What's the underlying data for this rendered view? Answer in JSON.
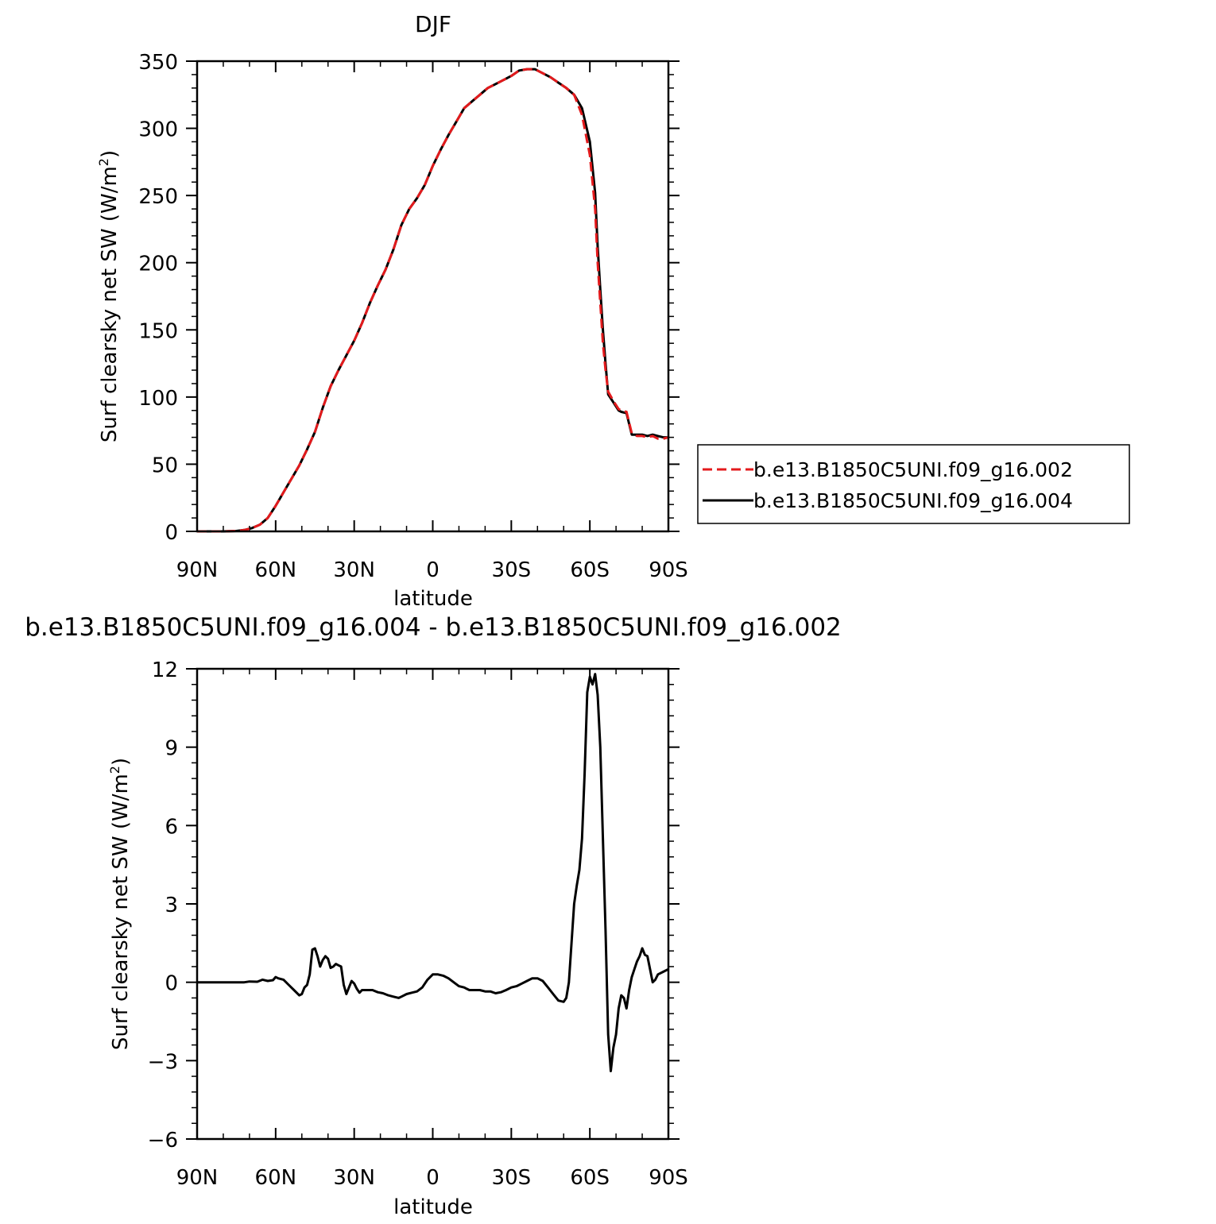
{
  "chart_data": [
    {
      "type": "line",
      "title": "DJF",
      "xlabel": "latitude",
      "ylabel_main": "Surf clearsky net SW (W/m",
      "ylabel_sup": "2",
      "ylabel_close": ")",
      "xlim": [
        -90,
        90
      ],
      "ylim": [
        0,
        350
      ],
      "x_ticks": [
        -90,
        -60,
        -30,
        0,
        30,
        60,
        90
      ],
      "x_tick_labels": [
        "90N",
        "60N",
        "30N",
        "0",
        "30S",
        "60S",
        "90S"
      ],
      "y_ticks": [
        0,
        50,
        100,
        150,
        200,
        250,
        300,
        350
      ],
      "y_tick_labels": [
        "0",
        "50",
        "100",
        "150",
        "200",
        "250",
        "300",
        "350"
      ],
      "legend_position": "right",
      "series": [
        {
          "name": "b.e13.B1850C5UNI.f09_g16.002",
          "color": "#e31a1c",
          "dash": "dashed",
          "points": [
            [
              -90,
              0
            ],
            [
              -85,
              0
            ],
            [
              -80,
              0
            ],
            [
              -75,
              0.3
            ],
            [
              -72,
              1
            ],
            [
              -69,
              2.5
            ],
            [
              -66,
              5
            ],
            [
              -63,
              10
            ],
            [
              -60,
              19
            ],
            [
              -57,
              29
            ],
            [
              -54,
              39
            ],
            [
              -51,
              49
            ],
            [
              -48,
              61
            ],
            [
              -45,
              74
            ],
            [
              -42,
              92
            ],
            [
              -39,
              108
            ],
            [
              -36,
              120
            ],
            [
              -33,
              131
            ],
            [
              -30,
              142
            ],
            [
              -27,
              155
            ],
            [
              -24,
              170
            ],
            [
              -21,
              183
            ],
            [
              -18,
              195
            ],
            [
              -15,
              210
            ],
            [
              -12,
              228
            ],
            [
              -9,
              240
            ],
            [
              -6,
              248
            ],
            [
              -3,
              258
            ],
            [
              0,
              272
            ],
            [
              3,
              284
            ],
            [
              6,
              295
            ],
            [
              9,
              305
            ],
            [
              12,
              315
            ],
            [
              15,
              320
            ],
            [
              18,
              325
            ],
            [
              21,
              330
            ],
            [
              24,
              333
            ],
            [
              27,
              336
            ],
            [
              30,
              339
            ],
            [
              33,
              343
            ],
            [
              36,
              344
            ],
            [
              39,
              344
            ],
            [
              42,
              341
            ],
            [
              45,
              338
            ],
            [
              48,
              334
            ],
            [
              51,
              330
            ],
            [
              54,
              325
            ],
            [
              57,
              310
            ],
            [
              60,
              280
            ],
            [
              62,
              240
            ],
            [
              63,
              200
            ],
            [
              64,
              170
            ],
            [
              65,
              140
            ],
            [
              66,
              120
            ],
            [
              67,
              104
            ],
            [
              69,
              97
            ],
            [
              71,
              91
            ],
            [
              72,
              90
            ],
            [
              74,
              89
            ],
            [
              76,
              73
            ],
            [
              78,
              71
            ],
            [
              80,
              71
            ],
            [
              82,
              70
            ],
            [
              84,
              71
            ],
            [
              86,
              69
            ],
            [
              88,
              69
            ],
            [
              90,
              70
            ]
          ]
        },
        {
          "name": "b.e13.B1850C5UNI.f09_g16.004",
          "color": "#000000",
          "dash": "solid",
          "points": [
            [
              -90,
              0
            ],
            [
              -85,
              0
            ],
            [
              -80,
              0
            ],
            [
              -75,
              0.3
            ],
            [
              -72,
              1
            ],
            [
              -69,
              2.5
            ],
            [
              -66,
              5
            ],
            [
              -63,
              10
            ],
            [
              -60,
              19
            ],
            [
              -57,
              29
            ],
            [
              -54,
              39
            ],
            [
              -51,
              49
            ],
            [
              -48,
              61
            ],
            [
              -45,
              74
            ],
            [
              -42,
              92
            ],
            [
              -39,
              108
            ],
            [
              -36,
              120
            ],
            [
              -33,
              131
            ],
            [
              -30,
              142
            ],
            [
              -27,
              155
            ],
            [
              -24,
              170
            ],
            [
              -21,
              183
            ],
            [
              -18,
              195
            ],
            [
              -15,
              210
            ],
            [
              -12,
              228
            ],
            [
              -9,
              240
            ],
            [
              -6,
              248
            ],
            [
              -3,
              258
            ],
            [
              0,
              272
            ],
            [
              3,
              284
            ],
            [
              6,
              295
            ],
            [
              9,
              305
            ],
            [
              12,
              315
            ],
            [
              15,
              320
            ],
            [
              18,
              325
            ],
            [
              21,
              330
            ],
            [
              24,
              333
            ],
            [
              27,
              336
            ],
            [
              30,
              339
            ],
            [
              33,
              343
            ],
            [
              36,
              344
            ],
            [
              39,
              344
            ],
            [
              42,
              341
            ],
            [
              45,
              338
            ],
            [
              48,
              334
            ],
            [
              51,
              330
            ],
            [
              54,
              325
            ],
            [
              57,
              315
            ],
            [
              60,
              290
            ],
            [
              62,
              252
            ],
            [
              63,
              212
            ],
            [
              64,
              180
            ],
            [
              65,
              150
            ],
            [
              66,
              125
            ],
            [
              67,
              102
            ],
            [
              69,
              96
            ],
            [
              71,
              90
            ],
            [
              72,
              89
            ],
            [
              74,
              88
            ],
            [
              76,
              72
            ],
            [
              78,
              72
            ],
            [
              80,
              72
            ],
            [
              82,
              71
            ],
            [
              84,
              72
            ],
            [
              86,
              71
            ],
            [
              88,
              70
            ],
            [
              90,
              70
            ]
          ]
        }
      ]
    },
    {
      "type": "line",
      "title": "b.e13.B1850C5UNI.f09_g16.004 - b.e13.B1850C5UNI.f09_g16.002",
      "xlabel": "latitude",
      "ylabel_main": "Surf clearsky net SW (W/m",
      "ylabel_sup": "2",
      "ylabel_close": ")",
      "xlim": [
        -90,
        90
      ],
      "ylim": [
        -6,
        12
      ],
      "x_ticks": [
        -90,
        -60,
        -30,
        0,
        30,
        60,
        90
      ],
      "x_tick_labels": [
        "90N",
        "60N",
        "30N",
        "0",
        "30S",
        "60S",
        "90S"
      ],
      "y_ticks": [
        -6,
        -3,
        0,
        3,
        6,
        9,
        12
      ],
      "y_tick_labels": [
        "−6",
        "−3",
        "0",
        "3",
        "6",
        "9",
        "12"
      ],
      "series": [
        {
          "color": "#000000",
          "dash": "solid",
          "points": [
            [
              -90,
              0
            ],
            [
              -80,
              0
            ],
            [
              -72,
              0
            ],
            [
              -70,
              0.03
            ],
            [
              -67,
              0.02
            ],
            [
              -65,
              0.1
            ],
            [
              -63,
              0.05
            ],
            [
              -61,
              0.08
            ],
            [
              -60,
              0.2
            ],
            [
              -59,
              0.15
            ],
            [
              -57,
              0.1
            ],
            [
              -55,
              -0.1
            ],
            [
              -53,
              -0.3
            ],
            [
              -51,
              -0.5
            ],
            [
              -50,
              -0.45
            ],
            [
              -49,
              -0.2
            ],
            [
              -48,
              -0.1
            ],
            [
              -47,
              0.3
            ],
            [
              -46,
              1.25
            ],
            [
              -45,
              1.3
            ],
            [
              -44,
              1.0
            ],
            [
              -43,
              0.6
            ],
            [
              -42,
              0.85
            ],
            [
              -41,
              1.0
            ],
            [
              -40,
              0.9
            ],
            [
              -39,
              0.55
            ],
            [
              -38,
              0.6
            ],
            [
              -37,
              0.7
            ],
            [
              -36,
              0.65
            ],
            [
              -35,
              0.6
            ],
            [
              -34,
              -0.1
            ],
            [
              -33,
              -0.45
            ],
            [
              -32,
              -0.2
            ],
            [
              -31,
              0.05
            ],
            [
              -30,
              -0.05
            ],
            [
              -29,
              -0.25
            ],
            [
              -28,
              -0.4
            ],
            [
              -27,
              -0.3
            ],
            [
              -25,
              -0.3
            ],
            [
              -23,
              -0.3
            ],
            [
              -21,
              -0.38
            ],
            [
              -19,
              -0.42
            ],
            [
              -17,
              -0.5
            ],
            [
              -15,
              -0.55
            ],
            [
              -13,
              -0.6
            ],
            [
              -12,
              -0.55
            ],
            [
              -10,
              -0.45
            ],
            [
              -8,
              -0.4
            ],
            [
              -6,
              -0.35
            ],
            [
              -4,
              -0.2
            ],
            [
              -2,
              0.1
            ],
            [
              0,
              0.3
            ],
            [
              2,
              0.3
            ],
            [
              4,
              0.25
            ],
            [
              6,
              0.15
            ],
            [
              8,
              0
            ],
            [
              10,
              -0.15
            ],
            [
              12,
              -0.2
            ],
            [
              13,
              -0.25
            ],
            [
              14,
              -0.3
            ],
            [
              16,
              -0.3
            ],
            [
              18,
              -0.3
            ],
            [
              20,
              -0.35
            ],
            [
              22,
              -0.35
            ],
            [
              24,
              -0.42
            ],
            [
              26,
              -0.38
            ],
            [
              28,
              -0.3
            ],
            [
              30,
              -0.2
            ],
            [
              32,
              -0.15
            ],
            [
              34,
              -0.05
            ],
            [
              36,
              0.05
            ],
            [
              38,
              0.15
            ],
            [
              40,
              0.15
            ],
            [
              42,
              0.05
            ],
            [
              44,
              -0.2
            ],
            [
              46,
              -0.45
            ],
            [
              48,
              -0.7
            ],
            [
              50,
              -0.75
            ],
            [
              51,
              -0.6
            ],
            [
              52,
              0.0
            ],
            [
              53,
              1.5
            ],
            [
              54,
              3.0
            ],
            [
              55,
              3.7
            ],
            [
              56,
              4.3
            ],
            [
              57,
              5.5
            ],
            [
              58,
              8.0
            ],
            [
              59,
              11.1
            ],
            [
              60,
              11.7
            ],
            [
              61,
              11.4
            ],
            [
              62,
              11.8
            ],
            [
              63,
              11.0
            ],
            [
              64,
              9.0
            ],
            [
              65,
              5.5
            ],
            [
              66,
              2.0
            ],
            [
              67,
              -2.0
            ],
            [
              68,
              -3.4
            ],
            [
              69,
              -2.5
            ],
            [
              70,
              -2.0
            ],
            [
              71,
              -1.0
            ],
            [
              72,
              -0.5
            ],
            [
              73,
              -0.6
            ],
            [
              74,
              -1.0
            ],
            [
              75,
              -0.3
            ],
            [
              76,
              0.2
            ],
            [
              77,
              0.5
            ],
            [
              78,
              0.8
            ],
            [
              79,
              1.0
            ],
            [
              80,
              1.3
            ],
            [
              81,
              1.05
            ],
            [
              82,
              1.0
            ],
            [
              83,
              0.5
            ],
            [
              84,
              0.0
            ],
            [
              85,
              0.1
            ],
            [
              86,
              0.3
            ],
            [
              88,
              0.4
            ],
            [
              90,
              0.5
            ]
          ]
        }
      ]
    }
  ]
}
